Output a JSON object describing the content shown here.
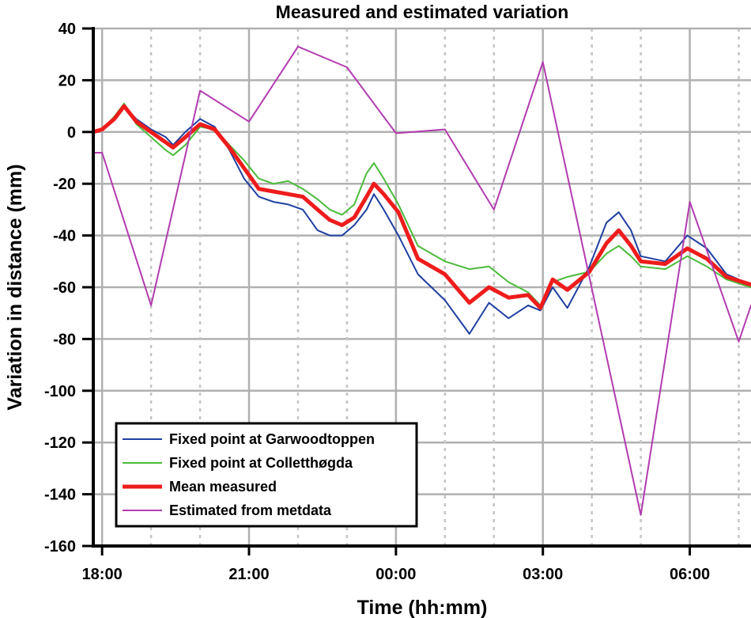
{
  "chart_data": {
    "type": "line",
    "title": "Measured and estimated variation",
    "xlabel": "Time (hh:mm)",
    "ylabel": "Variation in distance (mm)",
    "x_unit": "hours since 18:00",
    "xlim": [
      -0.18,
      13.25
    ],
    "ylim": [
      -160,
      40
    ],
    "grid": true,
    "legend_position": "bottom-left",
    "yticks": [
      40,
      20,
      0,
      -20,
      -40,
      -60,
      -80,
      -100,
      -120,
      -140,
      -160
    ],
    "xticks": [
      {
        "h": 0,
        "label": "18:00"
      },
      {
        "h": 3,
        "label": "21:00"
      },
      {
        "h": 6,
        "label": "00:00"
      },
      {
        "h": 9,
        "label": "03:00"
      },
      {
        "h": 12,
        "label": "06:00"
      }
    ],
    "x": [
      -0.18,
      0,
      0.25,
      0.45,
      0.7,
      1.0,
      1.3,
      1.45,
      1.7,
      2.0,
      2.3,
      2.6,
      2.9,
      3.2,
      3.5,
      3.8,
      4.1,
      4.4,
      4.65,
      4.9,
      5.15,
      5.4,
      5.55,
      5.75,
      6.05,
      6.45,
      7.0,
      7.5,
      7.9,
      8.3,
      8.7,
      8.95,
      9.2,
      9.5,
      9.95,
      10.3,
      10.55,
      10.8,
      11.0,
      11.5,
      11.95,
      12.35,
      12.75,
      13.25
    ],
    "series": [
      {
        "name": "Fixed point at Garwoodtoppen",
        "color": "#1f3fa0",
        "width": 2,
        "values": [
          0,
          1,
          5,
          10,
          5,
          1,
          -2,
          -5,
          0,
          5,
          2,
          -7,
          -18,
          -25,
          -27,
          -28,
          -30,
          -38,
          -40,
          -40,
          -36,
          -30,
          -24,
          -30,
          -40,
          -55,
          -65,
          -78,
          -66,
          -72,
          -67,
          -69,
          -60,
          -68,
          -52,
          -35,
          -31,
          -38,
          -48,
          -50,
          -40,
          -45,
          -55,
          -59
        ]
      },
      {
        "name": "Fixed point at Colletthøgda",
        "color": "#4cbb3c",
        "width": 2,
        "values": [
          0,
          1,
          6,
          11,
          3,
          -2,
          -7,
          -9,
          -5,
          2,
          1,
          -5,
          -11,
          -18,
          -20,
          -19,
          -22,
          -26,
          -30,
          -32,
          -28,
          -16,
          -12,
          -18,
          -28,
          -44,
          -50,
          -53,
          -52,
          -58,
          -62,
          -67,
          -58,
          -56,
          -54,
          -47,
          -44,
          -48,
          -52,
          -53,
          -48,
          -52,
          -57,
          -60
        ]
      },
      {
        "name": "Mean measured",
        "color": "#ee1c1c",
        "width": 5,
        "values": [
          0,
          1,
          5,
          10,
          4,
          0,
          -4,
          -6,
          -2,
          3,
          1,
          -6,
          -14,
          -22,
          -23,
          -24,
          -25,
          -30,
          -34,
          -36,
          -33,
          -25,
          -20,
          -24,
          -31,
          -49,
          -55,
          -66,
          -60,
          -64,
          -63,
          -68,
          -57,
          -61,
          -54,
          -43,
          -38,
          -44,
          -50,
          -51,
          -45,
          -49,
          -56,
          -59
        ]
      },
      {
        "name": "Estimated from metdata",
        "color": "#b23cb0",
        "width": 2,
        "x": [
          -0.18,
          0,
          1,
          2,
          3,
          4,
          5,
          6,
          7,
          8,
          9,
          11,
          12,
          13,
          13.25
        ],
        "values": [
          -8,
          -8,
          -67,
          16,
          4,
          33,
          25,
          -0.5,
          1,
          -30,
          27,
          -148,
          -27,
          -81,
          -67
        ]
      }
    ]
  }
}
